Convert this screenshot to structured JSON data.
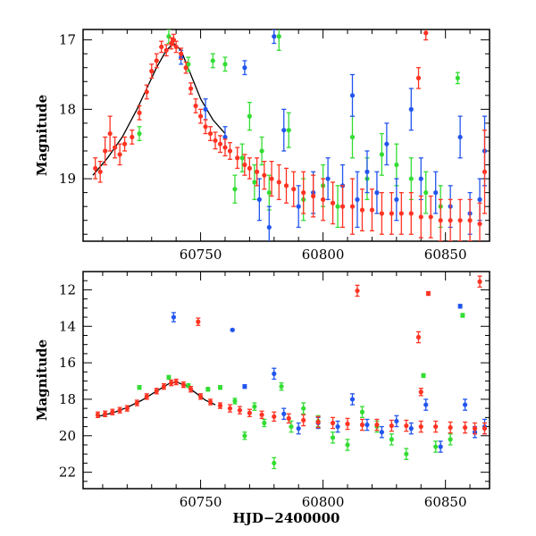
{
  "chart_data": [
    {
      "type": "scatter",
      "panel": "top",
      "title": "",
      "xlabel": "",
      "ylabel": "Magnitude",
      "xlim": [
        60702,
        60868
      ],
      "ylim": [
        19.9,
        16.85
      ],
      "y_inverted": true,
      "grid": false,
      "xticks": [
        60750,
        60800,
        60850
      ],
      "xtick_labels": [
        "60750",
        "60800",
        "60850"
      ],
      "yticks": [
        17,
        18,
        19
      ],
      "ytick_labels": [
        "17",
        "18",
        "19"
      ],
      "model_curve": {
        "x": [
          60706,
          60712,
          60718,
          60724,
          60728,
          60732,
          60736,
          60739,
          60742,
          60746,
          60750,
          60755,
          60760
        ],
        "y": [
          18.95,
          18.7,
          18.4,
          18.0,
          17.7,
          17.4,
          17.15,
          17.05,
          17.15,
          17.5,
          17.85,
          18.15,
          18.35
        ]
      },
      "series": [
        {
          "color": "#ff3322",
          "x": [
            60707,
            60709,
            60711,
            60713,
            60715,
            60717,
            60719,
            60722,
            60725,
            60728,
            60730,
            60732,
            60734,
            60736,
            60738,
            60739,
            60740,
            60742,
            60744,
            60746,
            60748,
            60750,
            60752,
            60754,
            60756,
            60758,
            60760,
            60762,
            60765,
            60768,
            60770,
            60773,
            60776,
            60779,
            60782,
            60785,
            60788,
            60792,
            60796,
            60800,
            60804,
            60808,
            60812,
            60816,
            60820,
            60824,
            60828,
            60832,
            60836,
            60840,
            60844,
            60848,
            60852,
            60856,
            60860,
            60864,
            60866,
            60839,
            60842
          ],
          "y": [
            18.85,
            18.9,
            18.6,
            18.35,
            18.55,
            18.65,
            18.5,
            18.4,
            18.05,
            17.75,
            17.45,
            17.3,
            17.1,
            17.15,
            17.05,
            17.0,
            17.1,
            17.2,
            17.4,
            17.7,
            17.95,
            18.1,
            18.25,
            18.35,
            18.45,
            18.5,
            18.55,
            18.6,
            18.7,
            18.8,
            18.85,
            18.9,
            18.95,
            19.0,
            19.05,
            19.1,
            19.15,
            19.2,
            19.25,
            19.3,
            19.35,
            19.4,
            19.4,
            19.45,
            19.45,
            19.5,
            19.5,
            19.5,
            19.5,
            19.55,
            19.55,
            19.6,
            19.6,
            19.6,
            19.6,
            19.65,
            18.9,
            17.55,
            16.9
          ],
          "err": [
            0.15,
            0.15,
            0.2,
            0.25,
            0.15,
            0.15,
            0.1,
            0.1,
            0.1,
            0.1,
            0.1,
            0.1,
            0.08,
            0.08,
            0.08,
            0.08,
            0.08,
            0.08,
            0.08,
            0.08,
            0.1,
            0.1,
            0.1,
            0.1,
            0.12,
            0.12,
            0.12,
            0.12,
            0.15,
            0.15,
            0.15,
            0.2,
            0.2,
            0.25,
            0.25,
            0.25,
            0.25,
            0.3,
            0.3,
            0.3,
            0.3,
            0.3,
            0.4,
            0.3,
            0.3,
            0.3,
            0.3,
            0.3,
            0.3,
            0.3,
            0.3,
            0.3,
            0.3,
            0.3,
            0.3,
            0.3,
            0.6,
            0.15,
            0.1
          ]
        },
        {
          "color": "#2255ee",
          "x": [
            60742,
            60752,
            60760,
            60768,
            60774,
            60778,
            60780,
            60784,
            60790,
            60796,
            60802,
            60808,
            60812,
            60814,
            60818,
            60822,
            60826,
            60830,
            60836,
            60840,
            60846,
            60852,
            60856,
            60860,
            60864,
            60866
          ],
          "y": [
            17.25,
            18.0,
            18.4,
            17.4,
            19.3,
            19.7,
            16.95,
            18.3,
            19.4,
            19.2,
            19.0,
            19.1,
            17.8,
            19.3,
            18.9,
            19.2,
            18.5,
            19.3,
            18.0,
            19.0,
            19.2,
            19.4,
            18.4,
            19.5,
            19.3,
            18.6
          ],
          "err": [
            0.1,
            0.15,
            0.15,
            0.1,
            0.3,
            0.3,
            0.1,
            0.3,
            0.3,
            0.3,
            0.3,
            0.3,
            0.3,
            0.4,
            0.3,
            0.3,
            0.3,
            0.3,
            0.3,
            0.3,
            0.3,
            0.3,
            0.3,
            0.3,
            0.3,
            0.5
          ]
        },
        {
          "color": "#33dd33",
          "x": [
            60725,
            60737,
            60745,
            60755,
            60760,
            60764,
            60767,
            60770,
            60772,
            60775,
            60778,
            60782,
            60786,
            60792,
            60800,
            60806,
            60812,
            60818,
            60824,
            60830,
            60836,
            60842,
            60848,
            60855
          ],
          "y": [
            18.35,
            16.95,
            17.35,
            17.3,
            17.35,
            19.15,
            18.7,
            18.1,
            19.05,
            18.6,
            19.2,
            16.95,
            18.3,
            19.3,
            19.1,
            19.4,
            18.4,
            19.0,
            18.65,
            18.8,
            19.0,
            19.2,
            19.4,
            17.55
          ],
          "err": [
            0.1,
            0.1,
            0.1,
            0.1,
            0.1,
            0.2,
            0.2,
            0.2,
            0.25,
            0.2,
            0.25,
            0.2,
            0.25,
            0.3,
            0.3,
            0.3,
            0.3,
            0.3,
            0.3,
            0.3,
            0.3,
            0.3,
            0.3,
            0.08
          ]
        }
      ]
    },
    {
      "type": "scatter",
      "panel": "bottom",
      "title": "",
      "xlabel": "HJD−2400000",
      "ylabel": "Magnitude",
      "xlim": [
        60702,
        60868
      ],
      "ylim": [
        22.9,
        11.0
      ],
      "y_inverted": true,
      "grid": false,
      "xticks": [
        60750,
        60800,
        60850
      ],
      "xtick_labels": [
        "60750",
        "60800",
        "60850"
      ],
      "yticks": [
        12,
        14,
        16,
        18,
        20,
        22
      ],
      "ytick_labels": [
        "12",
        "14",
        "16",
        "18",
        "20",
        "22"
      ],
      "model_curve": {
        "x": [
          60708,
          60714,
          60720,
          60726,
          60732,
          60737,
          60740,
          60744,
          60748,
          60752,
          60756
        ],
        "y": [
          18.95,
          18.75,
          18.45,
          18.05,
          17.55,
          17.15,
          17.05,
          17.25,
          17.65,
          18.05,
          18.3
        ]
      },
      "series": [
        {
          "color": "#ff3322",
          "x": [
            60708,
            60711,
            60714,
            60717,
            60720,
            60724,
            60728,
            60732,
            60735,
            60738,
            60740,
            60743,
            60746,
            60750,
            60754,
            60758,
            60762,
            60766,
            60770,
            60775,
            60780,
            60786,
            60792,
            60798,
            60804,
            60810,
            60816,
            60822,
            60828,
            60834,
            60840,
            60846,
            60852,
            60858,
            60862,
            60866,
            60749,
            60814,
            60839,
            60840,
            60843,
            60864
          ],
          "y": [
            18.85,
            18.8,
            18.7,
            18.6,
            18.5,
            18.2,
            17.85,
            17.55,
            17.3,
            17.1,
            17.05,
            17.2,
            17.45,
            17.85,
            18.15,
            18.35,
            18.5,
            18.6,
            18.75,
            18.85,
            18.95,
            19.05,
            19.15,
            19.25,
            19.3,
            19.35,
            19.4,
            19.4,
            19.45,
            19.45,
            19.5,
            19.5,
            19.55,
            19.55,
            19.6,
            19.6,
            13.75,
            12.05,
            14.6,
            17.6,
            12.2,
            11.55
          ],
          "err": [
            0.15,
            0.15,
            0.15,
            0.15,
            0.15,
            0.15,
            0.15,
            0.15,
            0.15,
            0.15,
            0.15,
            0.15,
            0.15,
            0.15,
            0.15,
            0.15,
            0.2,
            0.2,
            0.2,
            0.2,
            0.25,
            0.25,
            0.3,
            0.3,
            0.3,
            0.3,
            0.3,
            0.3,
            0.3,
            0.3,
            0.3,
            0.3,
            0.3,
            0.3,
            0.3,
            0.3,
            0.2,
            0.3,
            0.3,
            0.2,
            0.1,
            0.3
          ]
        },
        {
          "color": "#2255ee",
          "x": [
            60739,
            60763,
            60768,
            60780,
            60784,
            60790,
            60798,
            60806,
            60812,
            60818,
            60824,
            60830,
            60836,
            60842,
            60848,
            60856,
            60858,
            60862,
            60866
          ],
          "y": [
            13.5,
            14.2,
            17.3,
            16.6,
            18.8,
            19.6,
            19.3,
            19.5,
            18.0,
            19.4,
            19.8,
            19.2,
            19.6,
            18.3,
            20.6,
            12.9,
            18.3,
            19.8,
            19.5
          ],
          "err": [
            0.25,
            0.05,
            0.1,
            0.3,
            0.3,
            0.3,
            0.3,
            0.3,
            0.3,
            0.3,
            0.3,
            0.3,
            0.3,
            0.3,
            0.3,
            0.1,
            0.3,
            0.3,
            0.4
          ]
        },
        {
          "color": "#33dd33",
          "x": [
            60725,
            60737,
            60745,
            60753,
            60758,
            60764,
            60768,
            60772,
            60776,
            60780,
            60783,
            60787,
            60792,
            60798,
            60804,
            60810,
            60816,
            60822,
            60828,
            60834,
            60841,
            60846,
            60852,
            60857
          ],
          "y": [
            17.35,
            16.8,
            17.25,
            17.45,
            17.35,
            18.1,
            20.0,
            18.4,
            19.3,
            21.5,
            17.3,
            19.5,
            18.5,
            19.2,
            20.1,
            20.5,
            18.7,
            19.5,
            20.2,
            21.0,
            16.7,
            20.6,
            20.2,
            13.4
          ],
          "err": [
            0.1,
            0.1,
            0.1,
            0.1,
            0.1,
            0.15,
            0.2,
            0.2,
            0.2,
            0.3,
            0.2,
            0.3,
            0.3,
            0.3,
            0.3,
            0.3,
            0.3,
            0.3,
            0.3,
            0.3,
            0.1,
            0.3,
            0.3,
            0.1
          ]
        }
      ]
    }
  ]
}
